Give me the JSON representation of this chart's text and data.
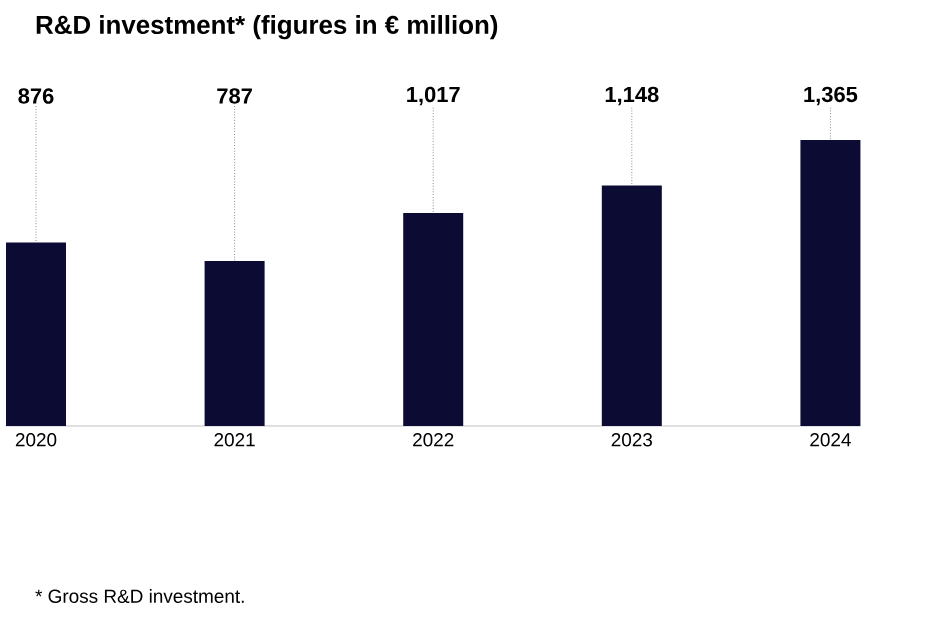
{
  "chart_data": {
    "type": "bar",
    "title": "R&D investment* (figures in € million)",
    "categories": [
      "2020",
      "2021",
      "2022",
      "2023",
      "2024"
    ],
    "values": [
      876,
      787,
      1017,
      1148,
      1365
    ],
    "value_labels": [
      "876",
      "787",
      "1,017",
      "1,148",
      "1,365"
    ],
    "color": "#0b0b33",
    "annotations": [
      "* Gross R&D investment."
    ]
  }
}
